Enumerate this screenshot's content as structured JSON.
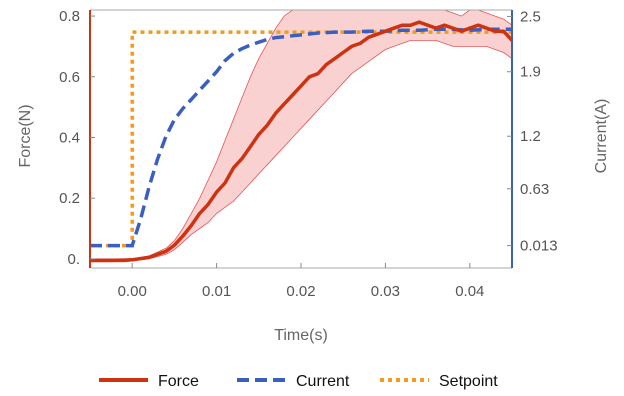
{
  "chart_data": {
    "type": "line",
    "title": "",
    "xlabel": "Time(s)",
    "ylabel_left": "Force(N)",
    "ylabel_right": "Current(A)",
    "xlim": [
      -0.005,
      0.045
    ],
    "ylim_left": [
      -0.03,
      0.82
    ],
    "ylim_right": [
      -0.23,
      2.57
    ],
    "x_ticks": [
      0.0,
      0.01,
      0.02,
      0.03,
      0.04
    ],
    "x_tick_labels": [
      "0.00",
      "0.01",
      "0.02",
      "0.03",
      "0.04"
    ],
    "y_left_ticks": [
      0.0,
      0.2,
      0.4,
      0.6,
      0.8
    ],
    "y_left_tick_labels": [
      "0.",
      "0.2",
      "0.4",
      "0.6",
      "0.8"
    ],
    "y_right_ticks": [
      0.013,
      0.63,
      1.2,
      1.9,
      2.5
    ],
    "y_right_tick_labels": [
      "0.013",
      "0.63",
      "1.2",
      "1.9",
      "2.5"
    ],
    "legend_position": "bottom",
    "colors": {
      "force": "#cc3311",
      "current": "#3b5fc0",
      "setpoint": "#f29a1b",
      "band": "#f7b9b9"
    },
    "series": [
      {
        "name": "Force",
        "axis": "left",
        "style": "solid",
        "x": [
          -0.005,
          -0.003,
          -0.001,
          0.0,
          0.002,
          0.004,
          0.005,
          0.006,
          0.007,
          0.008,
          0.009,
          0.01,
          0.011,
          0.012,
          0.013,
          0.014,
          0.015,
          0.016,
          0.017,
          0.018,
          0.019,
          0.02,
          0.021,
          0.022,
          0.023,
          0.024,
          0.025,
          0.026,
          0.027,
          0.028,
          0.029,
          0.03,
          0.031,
          0.032,
          0.033,
          0.034,
          0.035,
          0.036,
          0.037,
          0.038,
          0.039,
          0.04,
          0.041,
          0.042,
          0.043,
          0.044,
          0.045
        ],
        "y": [
          -0.005,
          -0.005,
          -0.004,
          -0.003,
          0.005,
          0.025,
          0.045,
          0.075,
          0.11,
          0.15,
          0.18,
          0.22,
          0.25,
          0.3,
          0.33,
          0.37,
          0.41,
          0.44,
          0.48,
          0.51,
          0.54,
          0.57,
          0.6,
          0.61,
          0.64,
          0.66,
          0.68,
          0.7,
          0.71,
          0.73,
          0.74,
          0.75,
          0.76,
          0.77,
          0.77,
          0.78,
          0.77,
          0.76,
          0.77,
          0.76,
          0.75,
          0.76,
          0.77,
          0.76,
          0.75,
          0.75,
          0.72
        ],
        "band_upper": [
          0.0,
          0.0,
          0.0,
          0.001,
          0.01,
          0.035,
          0.06,
          0.1,
          0.15,
          0.2,
          0.26,
          0.32,
          0.39,
          0.46,
          0.53,
          0.6,
          0.66,
          0.71,
          0.76,
          0.8,
          0.82,
          0.82,
          0.82,
          0.82,
          0.82,
          0.82,
          0.82,
          0.82,
          0.82,
          0.82,
          0.82,
          0.82,
          0.82,
          0.82,
          0.82,
          0.82,
          0.82,
          0.82,
          0.82,
          0.81,
          0.8,
          0.82,
          0.82,
          0.81,
          0.8,
          0.79,
          0.77
        ],
        "band_lower": [
          -0.01,
          -0.01,
          -0.01,
          -0.007,
          0.0,
          0.015,
          0.03,
          0.055,
          0.08,
          0.1,
          0.12,
          0.15,
          0.17,
          0.19,
          0.22,
          0.25,
          0.28,
          0.31,
          0.34,
          0.37,
          0.4,
          0.43,
          0.46,
          0.49,
          0.52,
          0.55,
          0.58,
          0.61,
          0.63,
          0.65,
          0.67,
          0.69,
          0.7,
          0.71,
          0.72,
          0.72,
          0.72,
          0.72,
          0.71,
          0.7,
          0.7,
          0.7,
          0.7,
          0.7,
          0.69,
          0.68,
          0.66
        ]
      },
      {
        "name": "Current",
        "axis": "right",
        "style": "dashed",
        "x": [
          -0.005,
          -0.003,
          -0.001,
          0.0,
          0.001,
          0.002,
          0.003,
          0.004,
          0.005,
          0.006,
          0.007,
          0.008,
          0.009,
          0.01,
          0.011,
          0.012,
          0.013,
          0.014,
          0.015,
          0.016,
          0.017,
          0.018,
          0.02,
          0.022,
          0.024,
          0.026,
          0.028,
          0.03,
          0.032,
          0.034,
          0.036,
          0.038,
          0.04,
          0.042,
          0.044,
          0.045
        ],
        "y": [
          0.013,
          0.013,
          0.013,
          0.013,
          0.3,
          0.65,
          0.95,
          1.2,
          1.38,
          1.5,
          1.6,
          1.7,
          1.8,
          1.9,
          2.02,
          2.1,
          2.15,
          2.19,
          2.22,
          2.25,
          2.27,
          2.28,
          2.3,
          2.32,
          2.33,
          2.33,
          2.34,
          2.34,
          2.35,
          2.35,
          2.36,
          2.36,
          2.35,
          2.36,
          2.36,
          2.36
        ]
      },
      {
        "name": "Setpoint",
        "axis": "right",
        "style": "dotted",
        "x": [
          -0.005,
          0.0,
          0.0,
          0.045
        ],
        "y": [
          0.013,
          0.013,
          2.33,
          2.33
        ]
      }
    ]
  }
}
